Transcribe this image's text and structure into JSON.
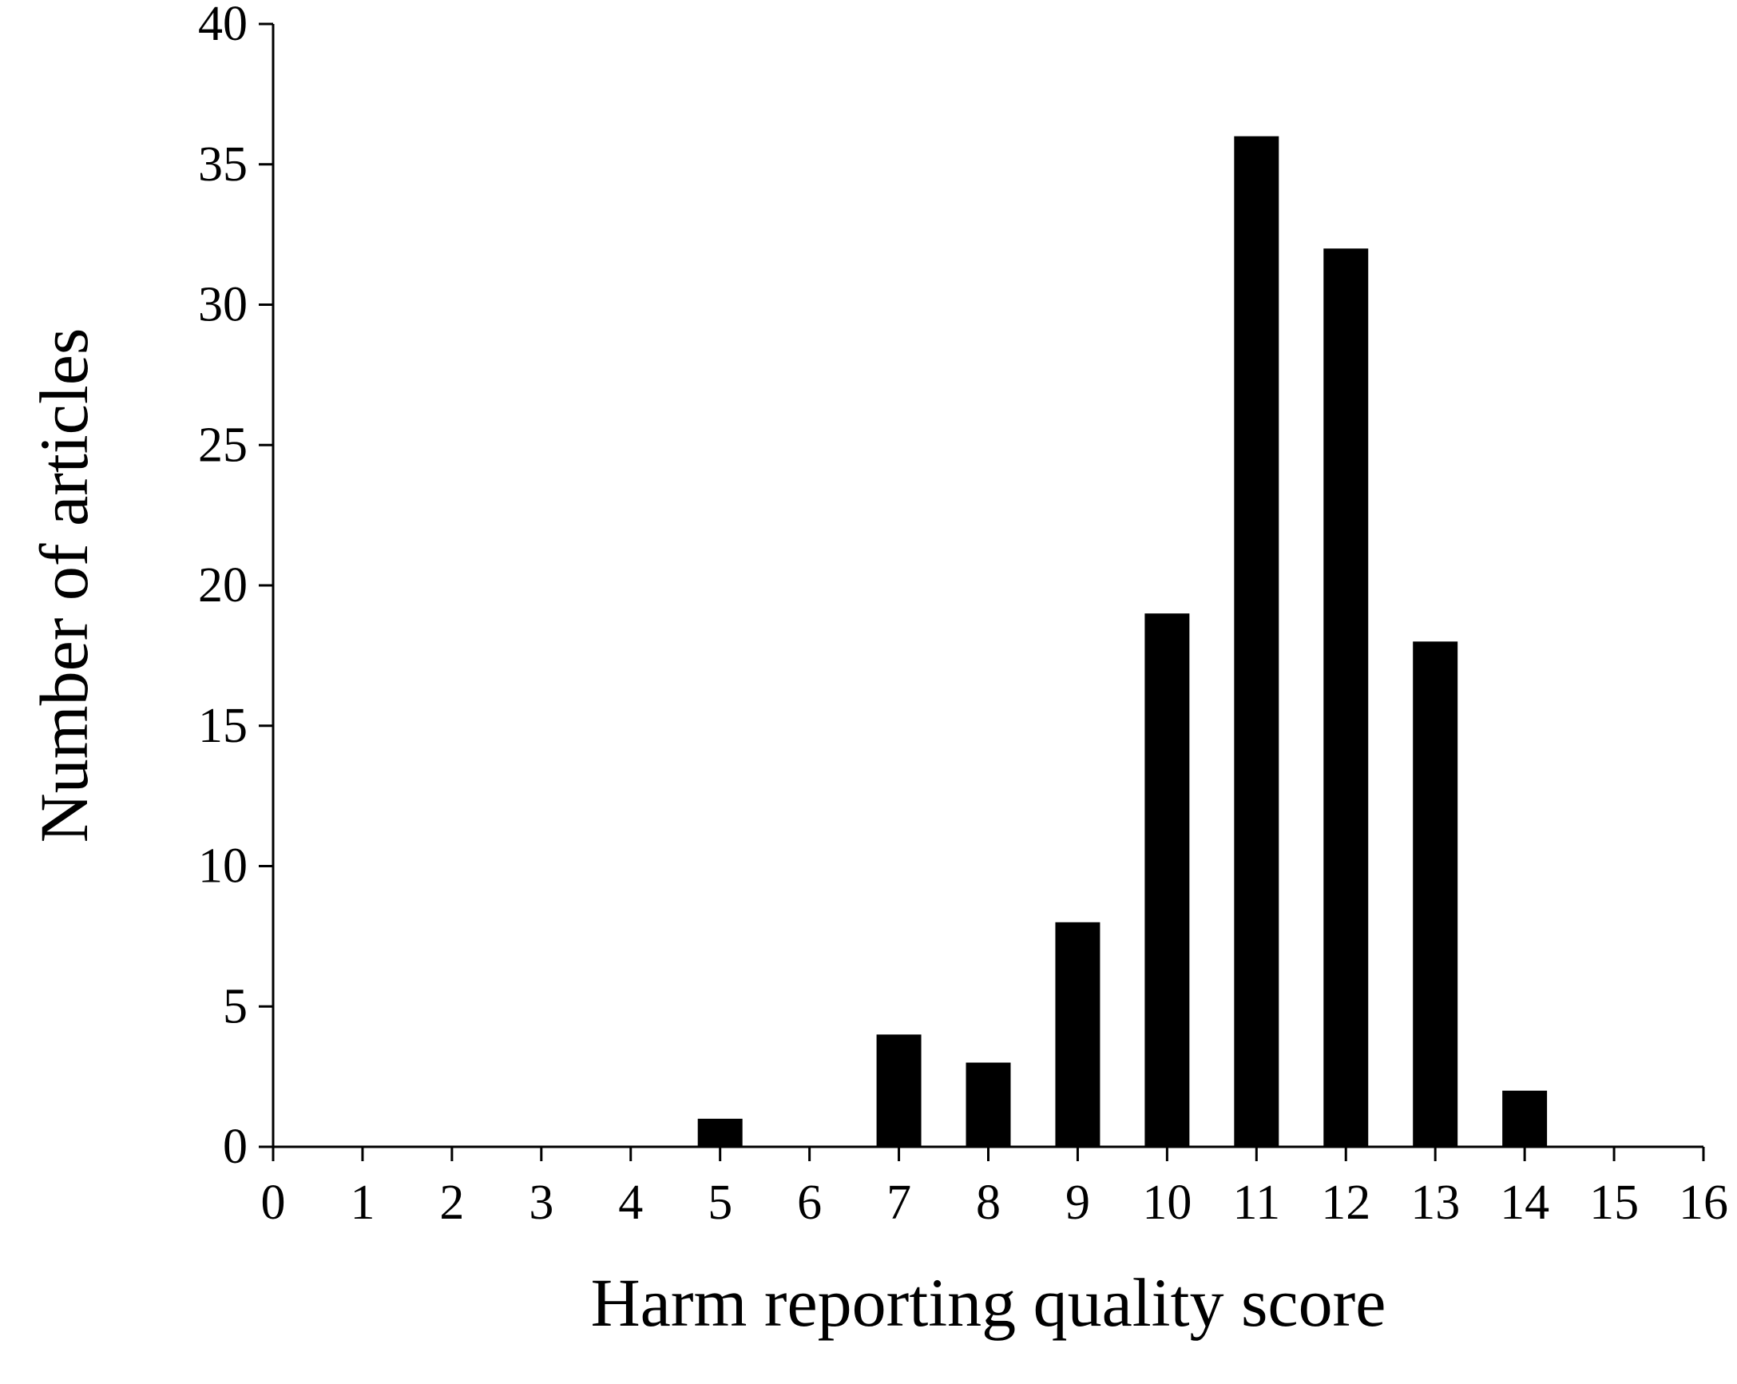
{
  "chart_data": {
    "type": "bar",
    "title": "",
    "xlabel": "Harm reporting quality score",
    "ylabel": "Number of articles",
    "xlim": [
      0,
      16
    ],
    "ylim": [
      0,
      40
    ],
    "x_ticks": [
      0,
      1,
      2,
      3,
      4,
      5,
      6,
      7,
      8,
      9,
      10,
      11,
      12,
      13,
      14,
      15,
      16
    ],
    "y_ticks": [
      0,
      5,
      10,
      15,
      20,
      25,
      30,
      35,
      40
    ],
    "x_tick_labels": [
      "0",
      "1",
      "2",
      "3",
      "4",
      "5",
      "6",
      "7",
      "8",
      "9",
      "10",
      "11",
      "12",
      "13",
      "14",
      "15",
      "16"
    ],
    "y_tick_labels": [
      "0",
      "5",
      "10",
      "15",
      "20",
      "25",
      "30",
      "35",
      "40"
    ],
    "x": [
      5,
      7,
      8,
      9,
      10,
      11,
      12,
      13,
      14
    ],
    "values": [
      1,
      4,
      3,
      8,
      19,
      36,
      32,
      18,
      2
    ],
    "bar_color": "#000000",
    "grid": false,
    "legend": "none"
  }
}
